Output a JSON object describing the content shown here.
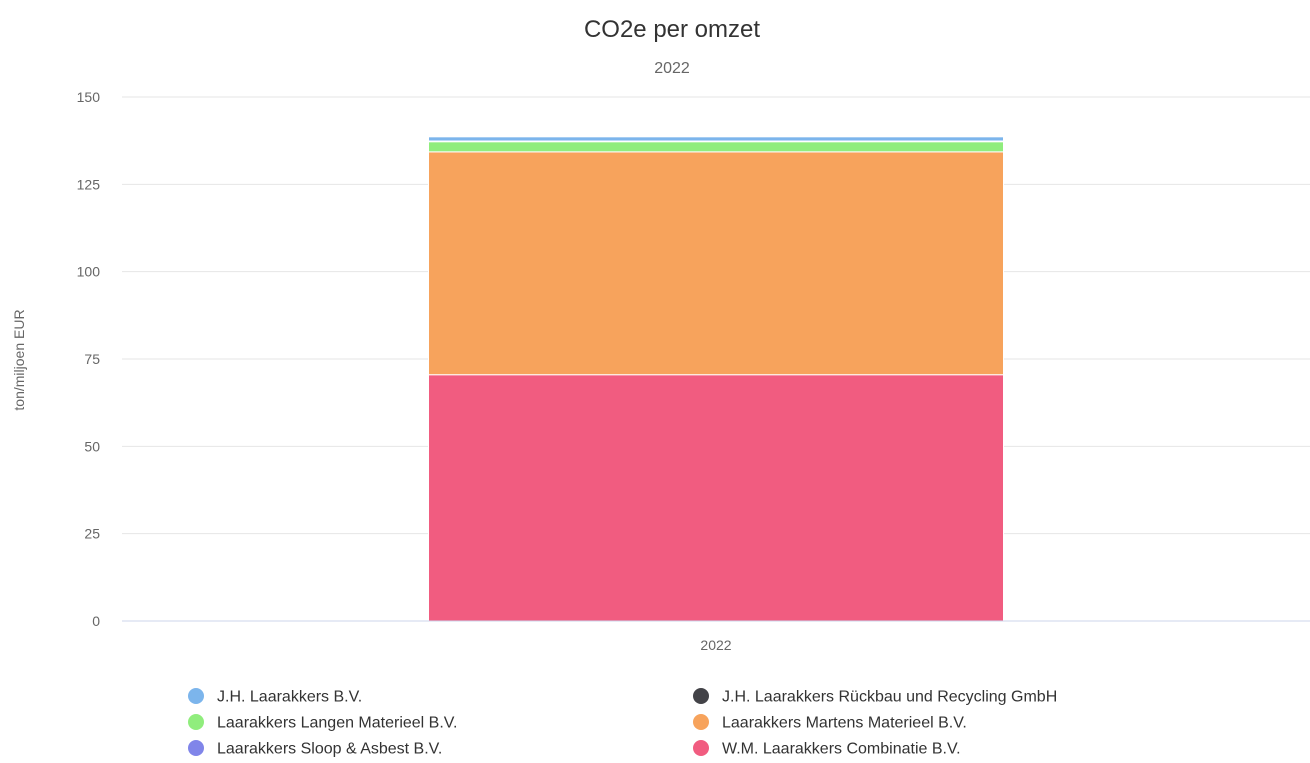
{
  "chart_data": {
    "type": "bar",
    "stacked": true,
    "title": "CO2e per omzet",
    "subtitle": "2022",
    "xlabel": "",
    "ylabel": "ton/miljoen EUR",
    "categories": [
      "2022"
    ],
    "ylim": [
      0,
      150
    ],
    "yticks": [
      0,
      25,
      50,
      75,
      100,
      125,
      150
    ],
    "grid": true,
    "legend_position": "bottom",
    "series": [
      {
        "name": "W.M. Laarakkers Combinatie B.V.",
        "values": [
          70.5
        ],
        "color": "#f15c80"
      },
      {
        "name": "Laarakkers Martens Materieel B.V.",
        "values": [
          63.8
        ],
        "color": "#f7a35c"
      },
      {
        "name": "Laarakkers Langen Materieel B.V.",
        "values": [
          2.9
        ],
        "color": "#90ed7d"
      },
      {
        "name": "Laarakkers Sloop & Asbest B.V.",
        "values": [
          0.1
        ],
        "color": "#8085e9"
      },
      {
        "name": "J.H. Laarakkers Rückbau und Recycling GmbH",
        "values": [
          0.1
        ],
        "color": "#434348"
      },
      {
        "name": "J.H. Laarakkers B.V.",
        "values": [
          1.2
        ],
        "color": "#7cb5ec"
      }
    ],
    "legend_order": [
      "J.H. Laarakkers B.V.",
      "J.H. Laarakkers Rückbau und Recycling GmbH",
      "Laarakkers Langen Materieel B.V.",
      "Laarakkers Martens Materieel B.V.",
      "Laarakkers Sloop & Asbest B.V.",
      "W.M. Laarakkers Combinatie B.V."
    ]
  }
}
